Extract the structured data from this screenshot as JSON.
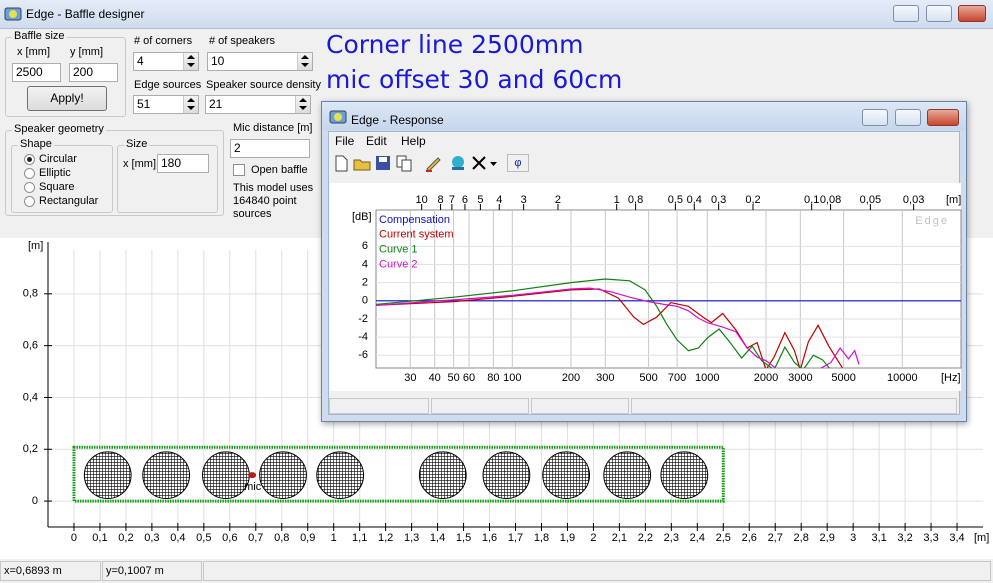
{
  "main_window": {
    "title": "Edge - Baffle designer"
  },
  "baffle_size": {
    "label": "Baffle size",
    "x_label": "x [mm]",
    "y_label": "y [mm]",
    "x_value": "2500",
    "y_value": "200",
    "apply_button": "Apply!"
  },
  "corners": {
    "label": "# of corners",
    "value": "4"
  },
  "speaker_count": {
    "label": "# of speakers",
    "value": "10"
  },
  "edge_sources": {
    "label": "Edge sources",
    "value": "51"
  },
  "speaker_density": {
    "label": "Speaker source density",
    "value": "21"
  },
  "speaker_geometry": {
    "label": "Speaker geometry",
    "shape_label": "Shape",
    "shapes": [
      "Circular",
      "Elliptic",
      "Square",
      "Rectangular"
    ],
    "selected_shape_index": 0
  },
  "size": {
    "label": "Size",
    "x_label": "x [mm]",
    "x_value": "180"
  },
  "mic_distance": {
    "label": "Mic distance [m]",
    "value": "2"
  },
  "open_baffle": {
    "label": "Open baffle",
    "checked": false
  },
  "model_info": [
    "This model uses",
    "164840 point",
    "sources"
  ],
  "annotation": [
    "Corner line 2500mm",
    "mic offset 30 and 60cm"
  ],
  "baffle_plot": {
    "y_unit": "[m]",
    "x_unit": "[m]",
    "xlim": [
      -0.1,
      3.5
    ],
    "ylim": [
      -0.1,
      1.0
    ],
    "xticks": [
      0,
      {
        "value": 0.1,
        "label": "0,1"
      },
      {
        "value": 0.2,
        "label": "0,2"
      },
      {
        "value": 0.3,
        "label": "0,3"
      },
      {
        "value": 0.4,
        "label": "0,4"
      },
      {
        "value": 0.5,
        "label": "0,5"
      },
      {
        "value": 0.6,
        "label": "0,6"
      },
      {
        "value": 0.7,
        "label": "0,7"
      },
      {
        "value": 0.8,
        "label": "0,8"
      },
      {
        "value": 0.9,
        "label": "0,9"
      },
      1,
      {
        "value": 1.1,
        "label": "1,1"
      },
      {
        "value": 1.2,
        "label": "1,2"
      },
      {
        "value": 1.3,
        "label": "1,3"
      },
      {
        "value": 1.4,
        "label": "1,4"
      },
      {
        "value": 1.5,
        "label": "1,5"
      },
      {
        "value": 1.6,
        "label": "1,6"
      },
      {
        "value": 1.7,
        "label": "1,7"
      },
      {
        "value": 1.8,
        "label": "1,8"
      },
      {
        "value": 1.9,
        "label": "1,9"
      },
      2,
      {
        "value": 2.1,
        "label": "2,1"
      },
      {
        "value": 2.2,
        "label": "2,2"
      },
      {
        "value": 2.3,
        "label": "2,3"
      },
      {
        "value": 2.4,
        "label": "2,4"
      },
      {
        "value": 2.5,
        "label": "2,5"
      },
      {
        "value": 2.6,
        "label": "2,6"
      },
      {
        "value": 2.7,
        "label": "2,7"
      },
      {
        "value": 2.8,
        "label": "2,8"
      },
      {
        "value": 2.9,
        "label": "2,9"
      },
      3,
      {
        "value": 3.1,
        "label": "3,1"
      },
      {
        "value": 3.2,
        "label": "3,2"
      },
      {
        "value": 3.3,
        "label": "3,3"
      },
      {
        "value": 3.4,
        "label": "3,4"
      }
    ],
    "yticks": [
      0,
      {
        "value": 0.2,
        "label": "0,2"
      },
      {
        "value": 0.4,
        "label": "0,4"
      },
      {
        "value": 0.6,
        "label": "0,6"
      },
      {
        "value": 0.8,
        "label": "0,8"
      }
    ],
    "baffle": {
      "x": [
        0,
        2.5
      ],
      "y": [
        0,
        0.2
      ],
      "color": "#16a016"
    },
    "speakers": {
      "x": [
        0.13,
        0.355,
        0.585,
        0.805,
        1.025,
        1.42,
        1.665,
        1.895,
        2.13,
        2.35
      ],
      "y": 0.1,
      "diameter": 0.18
    },
    "mic": {
      "x": 0.686,
      "y": 0.1,
      "label": "mic",
      "color": "#b02020"
    }
  },
  "response_window": {
    "title": "Edge - Response",
    "menu": [
      "File",
      "Edit",
      "Help"
    ],
    "chart": {
      "type": "line",
      "x_log": true,
      "xlim": [
        20,
        20000
      ],
      "ylim": [
        -7.4,
        10
      ],
      "y_label": "[dB]",
      "x_label": "[Hz]",
      "x2_label": "[m]",
      "watermark": "Edge",
      "grid": true,
      "xticks": [
        30,
        40,
        50,
        60,
        80,
        100,
        200,
        300,
        500,
        700,
        1000,
        2000,
        3000,
        5000,
        10000
      ],
      "yticks": [
        6,
        4,
        2,
        0,
        -2,
        -4,
        -6
      ],
      "x2ticks": [
        10,
        8,
        7,
        6,
        5,
        4,
        3,
        2,
        1,
        {
          "value": 0.8,
          "label": "0,8"
        },
        {
          "value": 0.5,
          "label": "0,5"
        },
        {
          "value": 0.4,
          "label": "0,4"
        },
        {
          "value": 0.3,
          "label": "0,3"
        },
        {
          "value": 0.2,
          "label": "0,2"
        },
        {
          "value": 0.1,
          "label": "0,1"
        },
        {
          "value": 0.08,
          "label": "0,08"
        },
        {
          "value": 0.05,
          "label": "0,05"
        },
        {
          "value": 0.03,
          "label": "0,03"
        }
      ],
      "series": [
        {
          "name": "Compensation",
          "color": "#1010c0",
          "x": [
            20,
            20000
          ],
          "values": [
            0,
            0
          ]
        },
        {
          "name": "Current system",
          "color": "#c00000",
          "x": [
            20,
            50,
            100,
            200,
            280,
            350,
            420,
            470,
            550,
            650,
            800,
            950,
            1050,
            1200,
            1400,
            1600,
            1800,
            2000,
            2200,
            2500,
            2800,
            3000,
            3300,
            3700,
            4200,
            5000,
            5500
          ],
          "values": [
            -0.5,
            -0.1,
            0.5,
            1.2,
            1.3,
            0.3,
            -1.8,
            -2.6,
            -1.8,
            -0.2,
            -0.6,
            -1.8,
            -2.4,
            -1.4,
            -3.2,
            -5.2,
            -4.6,
            -7.6,
            -6.2,
            -3.5,
            -5.5,
            -7.6,
            -4.5,
            -2.7,
            -5,
            -7.6,
            -7.6
          ]
        },
        {
          "name": "Curve 1",
          "color": "#108010",
          "x": [
            20,
            50,
            100,
            200,
            300,
            400,
            480,
            550,
            620,
            700,
            800,
            900,
            1000,
            1150,
            1300,
            1500,
            1700,
            1900,
            2200,
            2500,
            2800,
            3100,
            3500,
            3900,
            4300
          ],
          "values": [
            -0.4,
            0.4,
            1.1,
            2.0,
            2.4,
            2.2,
            1.2,
            -0.6,
            -2.6,
            -4.3,
            -5.5,
            -5.2,
            -4.1,
            -3.1,
            -4.5,
            -6.3,
            -5.0,
            -6.6,
            -7.6,
            -5.1,
            -6.8,
            -7.6,
            -6.0,
            -6.5,
            -7.6
          ]
        },
        {
          "name": "Curve 2",
          "color": "#d010d0",
          "x": [
            20,
            50,
            100,
            200,
            250,
            320,
            400,
            500,
            600,
            700,
            800,
            900,
            1000,
            1200,
            1400,
            1600,
            1800,
            2000,
            2300,
            2700,
            3200,
            3700,
            4300,
            4800,
            5300,
            5700,
            6000
          ],
          "values": [
            -0.5,
            0.1,
            0.6,
            1.3,
            1.4,
            1.0,
            0.4,
            -0.1,
            -0.4,
            -0.6,
            -1.1,
            -1.9,
            -2.4,
            -2.9,
            -3.4,
            -5.2,
            -6.2,
            -6.6,
            -7.6,
            -7.6,
            -7.6,
            -7.6,
            -6.8,
            -5.2,
            -6.4,
            -5.5,
            -7.0
          ]
        }
      ]
    }
  },
  "status_bar": [
    "x=0,6893 m",
    "y=0,1007 m"
  ]
}
